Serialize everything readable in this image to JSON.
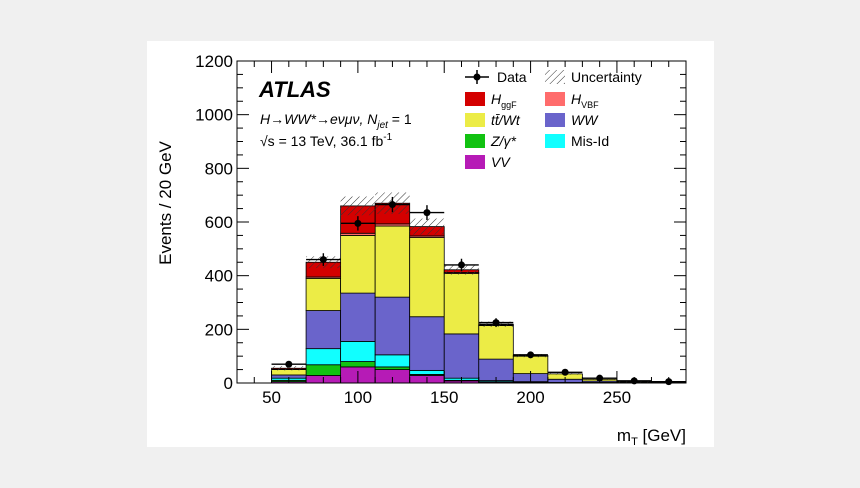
{
  "chart_data": {
    "type": "bar",
    "stacked": true,
    "ylabel": "Events / 20 GeV",
    "xlabel": "m",
    "xlabel_sub": "T",
    "xlabel_unit": " [GeV]",
    "xlim": [
      30,
      290
    ],
    "ylim": [
      0,
      1200
    ],
    "x_ticks": [
      50,
      100,
      150,
      200,
      250
    ],
    "y_ticks": [
      0,
      200,
      400,
      600,
      800,
      1000,
      1200
    ],
    "bin_edges": [
      50,
      70,
      90,
      110,
      130,
      150,
      170,
      190,
      210,
      230,
      250,
      270,
      290
    ],
    "atlas_label": "ATLAS",
    "annotation_line1": "H→WW*→eνμν, N",
    "annotation_line1_sub": "jet",
    "annotation_line1_end": " = 1",
    "annotation_line2": "√s = 13 TeV, 36.1 fb",
    "annotation_line2_sup": "-1",
    "series": [
      {
        "name": "VV",
        "color": "#b61bb6",
        "values": [
          5,
          28,
          60,
          50,
          28,
          8,
          4,
          2,
          1,
          1,
          0,
          0
        ]
      },
      {
        "name": "Z/γ*",
        "color": "#11c211",
        "values": [
          5,
          40,
          20,
          10,
          4,
          2,
          1,
          1,
          0,
          0,
          0,
          0
        ]
      },
      {
        "name": "Mis-Id",
        "color": "#11ffff",
        "values": [
          8,
          60,
          75,
          45,
          15,
          8,
          4,
          2,
          1,
          1,
          0,
          0
        ]
      },
      {
        "name": "WW",
        "color": "#6a64cb",
        "values": [
          12,
          142,
          180,
          215,
          200,
          165,
          80,
          30,
          12,
          5,
          2,
          1
        ]
      },
      {
        "name": "tt̄/Wt",
        "color": "#ecec46",
        "values": [
          20,
          120,
          215,
          265,
          295,
          225,
          125,
          65,
          20,
          7,
          3,
          1
        ]
      },
      {
        "name": "H",
        "name_sub": "VBF",
        "color": "#ff6c6c",
        "values": [
          1,
          5,
          8,
          8,
          6,
          4,
          2,
          1,
          0,
          0,
          0,
          0
        ]
      },
      {
        "name": "H",
        "name_sub": "ggF",
        "color": "#d40000",
        "values": [
          4,
          55,
          102,
          77,
          35,
          10,
          3,
          1,
          0,
          0,
          0,
          0
        ]
      }
    ],
    "uncertainty": {
      "name": "Uncertainty",
      "values": [
        8,
        22,
        35,
        40,
        30,
        18,
        10,
        6,
        3,
        2,
        1,
        1
      ]
    },
    "data": {
      "name": "Data",
      "x": [
        60,
        80,
        100,
        120,
        140,
        160,
        180,
        200,
        220,
        240,
        260,
        280
      ],
      "y": [
        70,
        460,
        595,
        665,
        635,
        440,
        225,
        105,
        40,
        18,
        8,
        5
      ]
    },
    "legend_placement": "top-right",
    "legend_order": [
      "Data",
      "Uncertainty",
      "H",
      "H",
      "tt̄/Wt",
      "WW",
      "Z/γ*",
      "Mis-Id",
      "VV"
    ]
  }
}
